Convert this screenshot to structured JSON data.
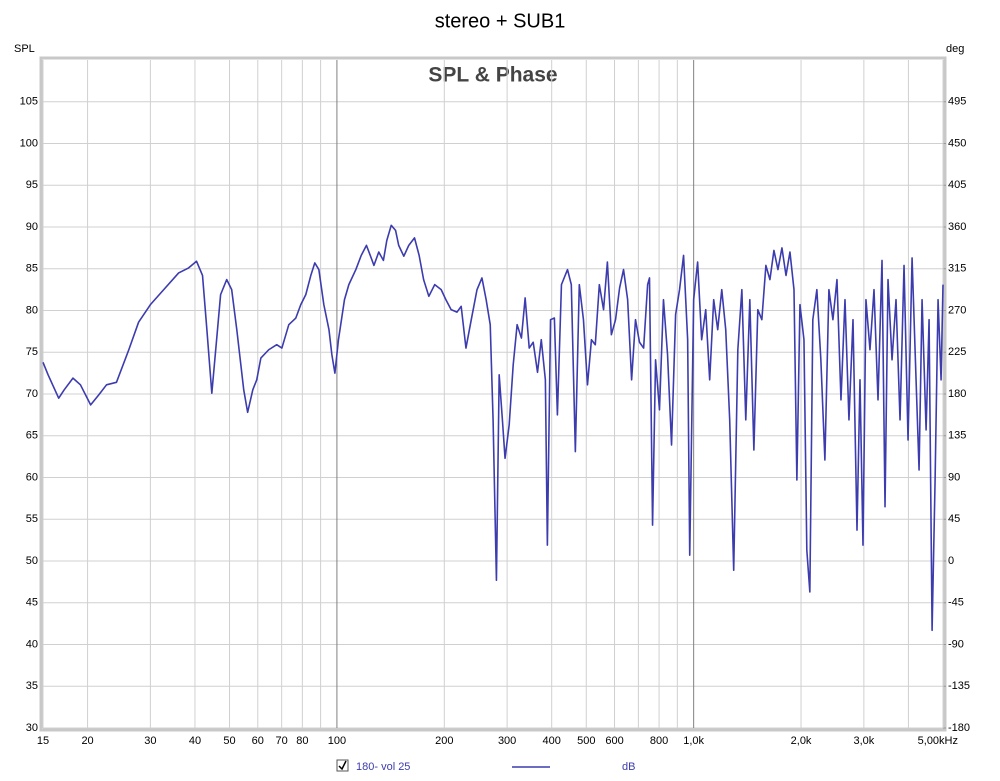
{
  "chart_data": {
    "type": "line",
    "title": "stereo + SUB1",
    "subtitle": "SPL & Phase",
    "ylabel": "SPL",
    "y2label": "deg",
    "xscale": "log",
    "xlim": [
      15,
      5000
    ],
    "xticks": [
      15,
      20,
      30,
      40,
      50,
      60,
      70,
      80,
      100,
      200,
      300,
      400,
      500,
      600,
      800,
      {
        "value": 1000,
        "label": "1,0k"
      },
      {
        "value": 2000,
        "label": "2,0k"
      },
      {
        "value": 3000,
        "label": "3,0k"
      },
      {
        "value": 5000,
        "label": "5,00kHz"
      }
    ],
    "xminorticks": [
      90,
      700,
      900,
      4000
    ],
    "ylim": [
      30,
      110
    ],
    "yticks": [
      30,
      35,
      40,
      45,
      50,
      55,
      60,
      65,
      70,
      75,
      80,
      85,
      90,
      95,
      100,
      105
    ],
    "y2lim": [
      -180,
      540
    ],
    "y2ticks": [
      -180,
      -135,
      -90,
      -45,
      0,
      45,
      90,
      135,
      180,
      225,
      270,
      315,
      360,
      405,
      450,
      495
    ],
    "grid": true,
    "legend_unit": "dB",
    "x": [
      15,
      15.5,
      16.6,
      17.2,
      18.2,
      19.1,
      20.4,
      21.5,
      22.6,
      24.1,
      26.1,
      27.8,
      30,
      32.7,
      36,
      38.4,
      40.4,
      42,
      43.2,
      44.6,
      46,
      47.2,
      49.1,
      50.7,
      52.4,
      54.8,
      56.2,
      58.1,
      59.6,
      61.2,
      64.4,
      67.8,
      70.1,
      73.3,
      76.7,
      79.2,
      81.8,
      84.5,
      86.7,
      89,
      91.9,
      95,
      96.8,
      98.7,
      101,
      105,
      108,
      113,
      117,
      121,
      124,
      127,
      131,
      135,
      138,
      142,
      146,
      149,
      154,
      159,
      165,
      170,
      175,
      181,
      188,
      196,
      202,
      209,
      217,
      223,
      230,
      238,
      247,
      255,
      262,
      269,
      274,
      280,
      285,
      291,
      296,
      304,
      312,
      320,
      329,
      337,
      346,
      355,
      365,
      374,
      384,
      389,
      397,
      407,
      415,
      426,
      443,
      454,
      466,
      478,
      491,
      504,
      517,
      530,
      544,
      559,
      573,
      588,
      604,
      620,
      636,
      653,
      670,
      687,
      705,
      724,
      743,
      752,
      767,
      782,
      802,
      823,
      845,
      867,
      890,
      913,
      937,
      962,
      975,
      1000,
      1026,
      1053,
      1081,
      1109,
      1138,
      1168,
      1199,
      1230,
      1262,
      1295,
      1330,
      1365,
      1400,
      1437,
      1475,
      1513,
      1553,
      1594,
      1636,
      1679,
      1723,
      1768,
      1815,
      1862,
      1911,
      1947,
      1986,
      2038,
      2076,
      2117,
      2158,
      2215,
      2273,
      2333,
      2394,
      2457,
      2522,
      2588,
      2656,
      2725,
      2797,
      2870,
      2926,
      2983,
      3041,
      3121,
      3203,
      3287,
      3373,
      3439,
      3506,
      3598,
      3692,
      3789,
      3888,
      3990,
      4095,
      4202,
      4284,
      4368,
      4483,
      4570,
      4660,
      4751,
      4843,
      4938,
      5000
    ],
    "series": [
      {
        "name": "180- vol 25",
        "color": "#3c3caf",
        "checked": true,
        "values": [
          73.8,
          72.3,
          69.5,
          70.5,
          71.9,
          71.1,
          68.7,
          69.9,
          71.1,
          71.4,
          75.3,
          78.6,
          80.7,
          82.5,
          84.5,
          85.1,
          85.9,
          84.2,
          77.7,
          70.1,
          76.5,
          81.9,
          83.7,
          82.5,
          77.7,
          70.5,
          67.8,
          70.5,
          71.7,
          74.3,
          75.3,
          75.9,
          75.5,
          78.3,
          79.1,
          80.7,
          81.9,
          84.2,
          85.7,
          84.9,
          80.7,
          77.7,
          74.7,
          72.5,
          76.5,
          81.3,
          83.1,
          84.9,
          86.6,
          87.8,
          86.6,
          85.4,
          87,
          86,
          88.4,
          90.2,
          89.6,
          87.8,
          86.5,
          87.8,
          88.7,
          86.6,
          83.7,
          81.7,
          83.1,
          82.5,
          81.3,
          80.1,
          79.8,
          80.5,
          75.5,
          78.9,
          82.5,
          83.9,
          81.3,
          78.3,
          66.9,
          47.7,
          72.3,
          66.9,
          62.3,
          66.3,
          73.5,
          78.3,
          76.7,
          81.5,
          75.5,
          76.2,
          72.6,
          76.5,
          71.7,
          51.9,
          78.9,
          79.1,
          67.5,
          83.1,
          84.9,
          83.1,
          63.1,
          83.1,
          78.9,
          71.1,
          76.5,
          75.9,
          83.1,
          80.1,
          85.8,
          77.1,
          78.9,
          82.7,
          84.9,
          81.3,
          71.7,
          78.9,
          76.2,
          75.5,
          83.1,
          83.9,
          54.3,
          74.1,
          68.1,
          81.3,
          74.7,
          63.9,
          79.5,
          82.5,
          86.6,
          76.5,
          50.7,
          81.3,
          85.8,
          76.5,
          80.1,
          71.7,
          81.3,
          77.7,
          82.5,
          77.7,
          66.9,
          48.9,
          75.3,
          82.5,
          66.9,
          81.3,
          63.3,
          80.1,
          78.9,
          85.4,
          83.7,
          87.2,
          84.9,
          87.5,
          84.2,
          87,
          82.5,
          59.7,
          80.7,
          76.5,
          51.3,
          46.3,
          78.9,
          82.5,
          74.1,
          62.1,
          82.5,
          78.9,
          83.7,
          69.3,
          81.3,
          66.9,
          78.9,
          53.7,
          71.7,
          51.9,
          81.3,
          75.3,
          82.5,
          69.3,
          86,
          56.5,
          83.7,
          74.1,
          81.3,
          66.9,
          85.4,
          64.5,
          86.3,
          71.7,
          60.9,
          81.3,
          65.7,
          78.9,
          41.7,
          59.7,
          81.3,
          71.7,
          83.1
        ]
      }
    ]
  }
}
